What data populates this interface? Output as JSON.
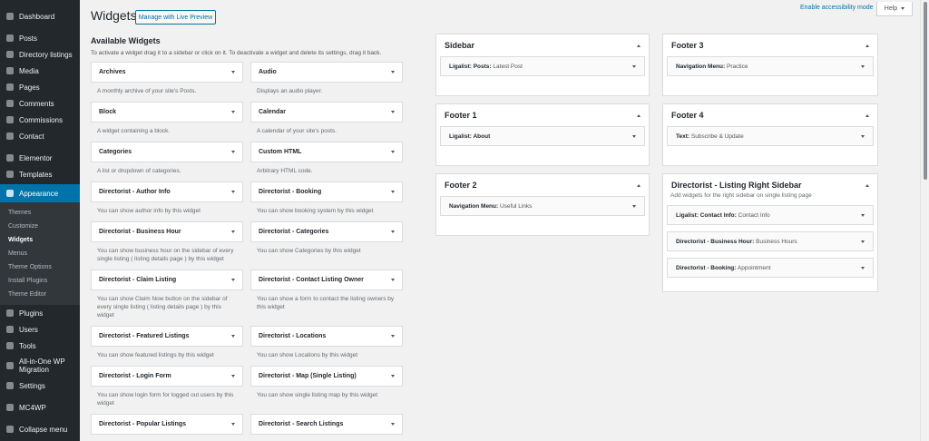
{
  "sidebar_menu": {
    "groups": [
      [
        {
          "label": "Dashboard"
        }
      ],
      [
        {
          "label": "Posts"
        },
        {
          "label": "Directory listings"
        },
        {
          "label": "Media"
        },
        {
          "label": "Pages"
        },
        {
          "label": "Comments"
        },
        {
          "label": "Commissions"
        },
        {
          "label": "Contact"
        }
      ],
      [
        {
          "label": "Elementor"
        },
        {
          "label": "Templates"
        },
        {
          "label": "Appearance",
          "submenu": [
            "Themes",
            "Customize",
            "Widgets",
            "Menus",
            "Theme Options",
            "Install Plugins",
            "Theme Editor"
          ]
        },
        {
          "label": "Plugins"
        },
        {
          "label": "Users"
        },
        {
          "label": "Tools"
        },
        {
          "label": "All-in-One WP Migration"
        },
        {
          "label": "Settings"
        }
      ],
      [
        {
          "label": "MC4WP"
        }
      ],
      [
        {
          "label": "Collapse menu"
        }
      ]
    ]
  },
  "header": {
    "title": "Widgets",
    "live_preview_button": "Manage with Live Preview",
    "accessibility_link": "Enable accessibility mode",
    "help_button": "Help"
  },
  "available_widgets": {
    "title": "Available Widgets",
    "description": "To activate a widget drag it to a sidebar or click on it. To deactivate a widget and delete its settings, drag it back.",
    "widgets": [
      {
        "name": "Archives",
        "description": "A monthly archive of your site's Posts."
      },
      {
        "name": "Audio",
        "description": "Displays an audio player."
      },
      {
        "name": "Block",
        "description": "A widget containing a block."
      },
      {
        "name": "Calendar",
        "description": "A calendar of your site's posts."
      },
      {
        "name": "Categories",
        "description": "A list or dropdown of categories."
      },
      {
        "name": "Custom HTML",
        "description": "Arbitrary HTML code."
      },
      {
        "name": "Directorist - Author Info",
        "description": "You can show author info by this widget"
      },
      {
        "name": "Directorist - Booking",
        "description": "You can show booking system by this widget"
      },
      {
        "name": "Directorist - Business Hour",
        "description": "You can show business hour on the sidebar of every single listing ( listing details page ) by this widget"
      },
      {
        "name": "Directorist - Categories",
        "description": "You can show Categories by this widget"
      },
      {
        "name": "Directorist - Claim Listing",
        "description": "You can show Claim Now button on the sidebar of every single listing ( listing details page ) by this widget"
      },
      {
        "name": "Directorist - Contact Listing Owner",
        "description": "You can show a form to contact the listing owners by this widget"
      },
      {
        "name": "Directorist - Featured Listings",
        "description": "You can show featured listings by this widget"
      },
      {
        "name": "Directorist - Locations",
        "description": "You can show Locations by this widget"
      },
      {
        "name": "Directorist - Login Form",
        "description": "You can show login form for logged out users by this widget"
      },
      {
        "name": "Directorist - Map (Single Listing)",
        "description": "You can show single listing map by this widget"
      },
      {
        "name": "Directorist - Popular Listings"
      },
      {
        "name": "Directorist - Search Listings"
      }
    ]
  },
  "sidebars": {
    "columns": [
      [
        {
          "title": "Sidebar",
          "widgets": [
            {
              "type": "Ligalist: Posts:",
              "title": "Latest Post"
            }
          ]
        },
        {
          "title": "Footer 1",
          "widgets": [
            {
              "type": "Ligalist: About"
            }
          ]
        },
        {
          "title": "Footer 2",
          "widgets": [
            {
              "type": "Navigation Menu:",
              "title": "Useful Links"
            }
          ]
        }
      ],
      [
        {
          "title": "Footer 3",
          "widgets": [
            {
              "type": "Navigation Menu:",
              "title": "Practice"
            }
          ]
        },
        {
          "title": "Footer 4",
          "widgets": [
            {
              "type": "Text:",
              "title": "Subscribe & Update"
            }
          ]
        },
        {
          "title": "Directorist - Listing Right Sidebar",
          "description": "Add widgets for the right sidebar on single listing page",
          "widgets": [
            {
              "type": "Ligalist: Contact Info:",
              "title": "Contact Info"
            },
            {
              "type": "Directorist - Business Hour:",
              "title": "Business Hours"
            },
            {
              "type": "Directorist - Booking:",
              "title": "Appointment"
            }
          ]
        }
      ]
    ]
  }
}
